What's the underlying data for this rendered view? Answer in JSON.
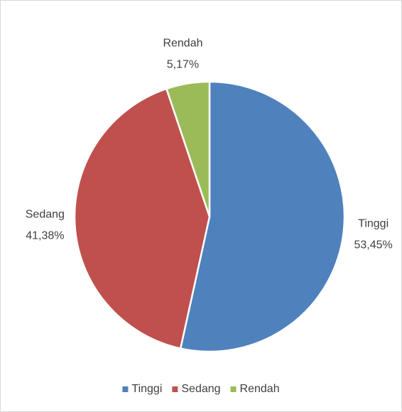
{
  "chart_data": {
    "type": "pie",
    "categories": [
      "Tinggi",
      "Sedang",
      "Rendah"
    ],
    "values": [
      53.45,
      41.38,
      5.17
    ],
    "value_labels": [
      "53,45%",
      "41,38%",
      "5,17%"
    ],
    "colors": [
      "#4f81bd",
      "#c0504d",
      "#9bbb59"
    ],
    "legend": "bottom"
  }
}
